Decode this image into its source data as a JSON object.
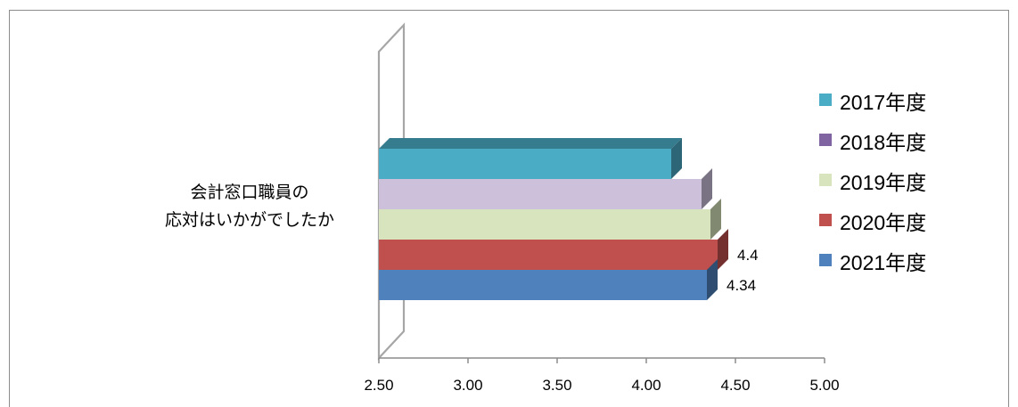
{
  "chart_data": {
    "type": "bar",
    "orientation": "horizontal",
    "style": "3d",
    "category_lines": [
      "会計窓口職員の",
      "応対はいかがでしたか"
    ],
    "series": [
      {
        "name": "2017年度",
        "value": 4.14,
        "color": "#4bacc6"
      },
      {
        "name": "2018年度",
        "value": 4.31,
        "color": "#8064a2",
        "bar_color": "#ccc0da"
      },
      {
        "name": "2019年度",
        "value": 4.36,
        "color": "#d7e4bd"
      },
      {
        "name": "2020年度",
        "value": 4.4,
        "color": "#c0504d",
        "label": "4.4"
      },
      {
        "name": "2021年度",
        "value": 4.34,
        "color": "#4f81bd",
        "label": "4.34"
      }
    ],
    "x_ticks": [
      "2.50",
      "3.00",
      "3.50",
      "4.00",
      "4.50",
      "5.00"
    ],
    "xlim": [
      2.5,
      5.0
    ],
    "legend_position": "right",
    "grid": false
  }
}
